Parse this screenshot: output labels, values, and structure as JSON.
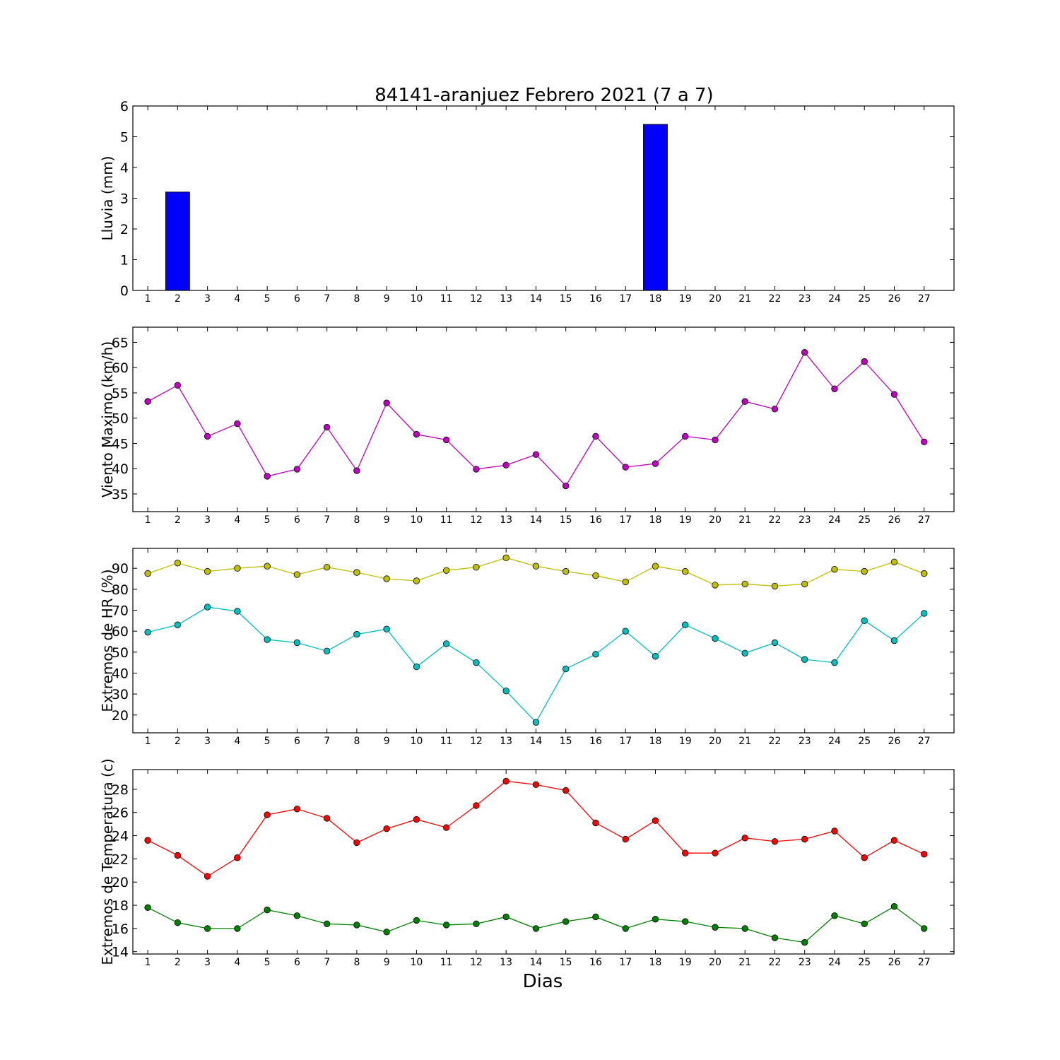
{
  "chart_data": {
    "title": "84141-aranjuez Febrero 2021  (7 a 7)",
    "xlabel": "Dias",
    "days": [
      1,
      2,
      3,
      4,
      5,
      6,
      7,
      8,
      9,
      10,
      11,
      12,
      13,
      14,
      15,
      16,
      17,
      18,
      19,
      20,
      21,
      22,
      23,
      24,
      25,
      26,
      27
    ],
    "panels": [
      {
        "type": "bar",
        "ylabel": "Lluvia (mm)",
        "ylim": [
          0,
          6
        ],
        "yticks": [
          0,
          1,
          2,
          3,
          4,
          5,
          6
        ],
        "grid": false,
        "series": [
          {
            "color": "#0000ff",
            "values": [
              0,
              3.2,
              0,
              0,
              0,
              0,
              0,
              0,
              0,
              0,
              0,
              0,
              0,
              0,
              0,
              0,
              0,
              5.4,
              0,
              0,
              0,
              0,
              0,
              0,
              0,
              0,
              0
            ]
          }
        ]
      },
      {
        "type": "line",
        "ylabel": "Viento Maximo (km/h)",
        "ylim": [
          31.5,
          68
        ],
        "yticks": [
          35,
          40,
          45,
          50,
          55,
          60,
          65
        ],
        "grid": false,
        "series": [
          {
            "color": "#bf00bf",
            "values": [
              53.3,
              56.5,
              46.4,
              48.9,
              38.5,
              39.9,
              48.2,
              39.6,
              53,
              46.8,
              45.7,
              39.9,
              40.7,
              42.8,
              36.6,
              46.4,
              40.3,
              41,
              46.4,
              45.7,
              53.3,
              51.8,
              63,
              55.8,
              61.2,
              54.7,
              45.3
            ]
          }
        ]
      },
      {
        "type": "line",
        "ylabel": "Extremos de HR (%)",
        "ylim": [
          11.5,
          99.5
        ],
        "yticks": [
          20,
          30,
          40,
          50,
          60,
          70,
          80,
          90
        ],
        "grid": false,
        "series": [
          {
            "color": "#bfbf00",
            "values": [
              87.5,
              92.5,
              88.5,
              90,
              91,
              87,
              90.5,
              88,
              85,
              84,
              89,
              90.5,
              95,
              91,
              88.5,
              86.5,
              83.5,
              91,
              88.5,
              82,
              82.5,
              81.5,
              82.5,
              89.5,
              88.5,
              93,
              87.5
            ]
          },
          {
            "color": "#00bfbf",
            "values": [
              59.5,
              63,
              71.5,
              69.5,
              56,
              54.5,
              50.5,
              58.5,
              61,
              43,
              54,
              45,
              31.5,
              16.5,
              42,
              49,
              60,
              48,
              63,
              56.5,
              49.5,
              54.5,
              46.5,
              45,
              65,
              55.5,
              68.5
            ]
          }
        ]
      },
      {
        "type": "line",
        "ylabel": "Extremos de Temperatura (c)",
        "ylim": [
          13.8,
          29.7
        ],
        "yticks": [
          14,
          16,
          18,
          20,
          22,
          24,
          26,
          28
        ],
        "grid": false,
        "series": [
          {
            "color": "#ff0000",
            "values": [
              23.6,
              22.3,
              20.5,
              22.1,
              25.8,
              26.3,
              25.5,
              23.4,
              24.6,
              25.4,
              24.7,
              26.6,
              28.7,
              28.4,
              27.9,
              25.1,
              23.7,
              25.3,
              22.5,
              22.5,
              23.8,
              23.5,
              23.7,
              24.4,
              22.1,
              23.6,
              22.4
            ]
          },
          {
            "color": "#008000",
            "values": [
              17.8,
              16.5,
              16,
              16,
              17.6,
              17.1,
              16.4,
              16.3,
              15.7,
              16.7,
              16.3,
              16.4,
              17,
              16,
              16.6,
              17,
              16,
              16.8,
              16.6,
              16.1,
              16,
              15.2,
              14.8,
              17.1,
              16.4,
              17.9,
              16
            ]
          }
        ]
      }
    ]
  }
}
